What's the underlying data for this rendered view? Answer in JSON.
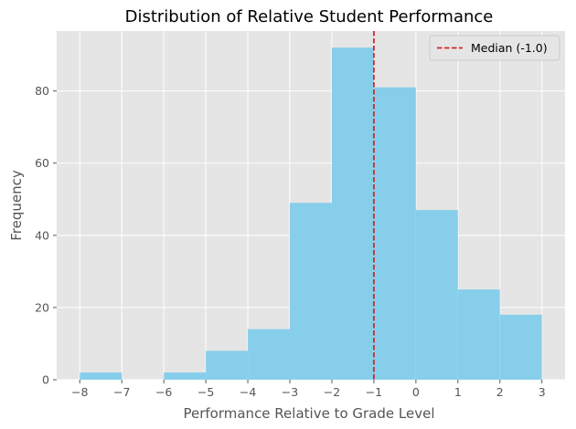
{
  "chart_data": {
    "type": "bar",
    "title": "Distribution of Relative Student Performance",
    "xlabel": "Performance Relative to Grade Level",
    "ylabel": "Frequency",
    "xlim": [
      -8.55,
      3.55
    ],
    "ylim": [
      0,
      96.6
    ],
    "x_ticks": [
      -8,
      -7,
      -6,
      -5,
      -4,
      -3,
      -2,
      -1,
      0,
      1,
      2,
      3
    ],
    "y_ticks": [
      0,
      20,
      40,
      60,
      80
    ],
    "grid": true,
    "legend_position": "top-right",
    "bins": [
      {
        "x0": -8.0,
        "x1": -7.0,
        "count": 2
      },
      {
        "x0": -7.0,
        "x1": -6.0,
        "count": 0
      },
      {
        "x0": -6.0,
        "x1": -5.0,
        "count": 2
      },
      {
        "x0": -5.0,
        "x1": -4.0,
        "count": 8
      },
      {
        "x0": -4.0,
        "x1": -3.0,
        "count": 14
      },
      {
        "x0": -3.0,
        "x1": -2.0,
        "count": 49
      },
      {
        "x0": -2.0,
        "x1": -1.0,
        "count": 92
      },
      {
        "x0": -1.0,
        "x1": 0.0,
        "count": 81
      },
      {
        "x0": 0.0,
        "x1": 1.0,
        "count": 47
      },
      {
        "x0": 1.0,
        "x1": 2.0,
        "count": 25
      },
      {
        "x0": 2.0,
        "x1": 3.0,
        "count": 18
      }
    ],
    "median_line": {
      "x": -1.0,
      "label": "Median (-1.0)",
      "color": "#d62728"
    },
    "bar_color": "#87ceeb",
    "background_color": "#e5e5e5",
    "grid_color": "#ffffff"
  }
}
